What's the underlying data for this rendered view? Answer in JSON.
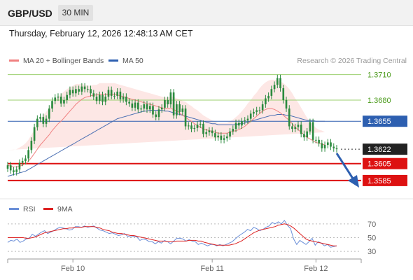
{
  "header": {
    "pair": "GBP/USD",
    "timeframe": "30 MIN",
    "timestamp": "Thursday, February 12, 2026 12:48:13 AM CET"
  },
  "legend": {
    "ma20": "MA 20 + Bollinger Bands",
    "ma50": "MA 50",
    "credit": "Research © 2026 Trading Central"
  },
  "rsi_legend": {
    "rsi": "RSI",
    "ma": "9MA"
  },
  "colors": {
    "candle": "#2b8a3e",
    "ma20": "#f08080",
    "band": "#fde3e1",
    "ma50": "#4a6fb3",
    "level_red": "#dd1111",
    "level_green": "#9bcf6e",
    "level_blue": "#2d5fb0",
    "arrow": "#2d5fb0",
    "rsi": "#6b8fd8",
    "rsi_ma": "#dd2222"
  },
  "chart_data": [
    {
      "type": "candlestick",
      "title": "GBP/USD",
      "timeframe": "30 MIN",
      "ylim": [
        1.3575,
        1.3718
      ],
      "x_ticks": [
        "Feb 10",
        "Feb 11",
        "Feb 12"
      ],
      "price_levels": [
        {
          "label": "1.3710",
          "value": 1.371,
          "kind": "green"
        },
        {
          "label": "1.3680",
          "value": 1.368,
          "kind": "green"
        },
        {
          "label": "1.3655",
          "value": 1.3655,
          "kind": "blue"
        },
        {
          "label": "1.3622",
          "value": 1.3622,
          "kind": "last"
        },
        {
          "label": "1.3605",
          "value": 1.3605,
          "kind": "red"
        },
        {
          "label": "1.3585",
          "value": 1.3585,
          "kind": "red"
        }
      ],
      "bars": 108,
      "close": [
        1.3603,
        1.3597,
        1.3595,
        1.3598,
        1.3606,
        1.3608,
        1.3611,
        1.3621,
        1.3632,
        1.3648,
        1.3658,
        1.366,
        1.3652,
        1.3658,
        1.367,
        1.3679,
        1.3683,
        1.3684,
        1.3676,
        1.368,
        1.3686,
        1.3692,
        1.3688,
        1.3693,
        1.369,
        1.3696,
        1.3693,
        1.3693,
        1.3688,
        1.3684,
        1.3679,
        1.3686,
        1.3678,
        1.3684,
        1.3692,
        1.3685,
        1.3685,
        1.369,
        1.3681,
        1.3684,
        1.3678,
        1.3676,
        1.3671,
        1.3677,
        1.3669,
        1.367,
        1.3675,
        1.3669,
        1.3673,
        1.3663,
        1.366,
        1.3669,
        1.3671,
        1.368,
        1.3675,
        1.3689,
        1.3662,
        1.3675,
        1.3666,
        1.367,
        1.3649,
        1.365,
        1.3646,
        1.3647,
        1.3651,
        1.3652,
        1.364,
        1.3642,
        1.3644,
        1.3641,
        1.3636,
        1.3638,
        1.3633,
        1.3635,
        1.3637,
        1.3643,
        1.3646,
        1.3653,
        1.365,
        1.3655,
        1.3656,
        1.3658,
        1.3664,
        1.3666,
        1.3668,
        1.3668,
        1.3675,
        1.3682,
        1.3685,
        1.3693,
        1.3698,
        1.3706,
        1.3694,
        1.368,
        1.367,
        1.3649,
        1.3646,
        1.3648,
        1.3651,
        1.364,
        1.3636,
        1.3643,
        1.3654,
        1.3633,
        1.3633,
        1.3629,
        1.3623,
        1.3627,
        1.363,
        1.3625,
        1.3623,
        1.3622
      ],
      "ma20": [
        1.3603,
        1.3602,
        1.3601,
        1.3601,
        1.3602,
        1.3603,
        1.3605,
        1.3608,
        1.3612,
        1.3617,
        1.3622,
        1.3627,
        1.3631,
        1.3635,
        1.3639,
        1.3644,
        1.3648,
        1.3652,
        1.3655,
        1.3659,
        1.3663,
        1.3667,
        1.3671,
        1.3675,
        1.3678,
        1.3681,
        1.3683,
        1.3684,
        1.3685,
        1.3686,
        1.3686,
        1.3687,
        1.3687,
        1.3687,
        1.3687,
        1.3687,
        1.3687,
        1.3686,
        1.3685,
        1.3684,
        1.3683,
        1.3682,
        1.3681,
        1.368,
        1.3679,
        1.3678,
        1.3677,
        1.3676,
        1.3675,
        1.3674,
        1.3673,
        1.3672,
        1.3671,
        1.367,
        1.367,
        1.367,
        1.3669,
        1.3667,
        1.3665,
        1.3662,
        1.366,
        1.3657,
        1.3655,
        1.3652,
        1.365,
        1.3648,
        1.3646,
        1.3645,
        1.3644,
        1.3643,
        1.3642,
        1.3641,
        1.3641,
        1.3641,
        1.3641,
        1.3642,
        1.3643,
        1.3644,
        1.3645,
        1.3647,
        1.3649,
        1.3652,
        1.3655,
        1.3658,
        1.3661,
        1.3664,
        1.3667,
        1.3669,
        1.367,
        1.367,
        1.3669,
        1.3667,
        1.3665,
        1.3662,
        1.3659,
        1.3656,
        1.3652,
        1.3648,
        1.3645,
        1.3642,
        1.3639,
        1.3636,
        1.3634,
        1.3632,
        1.363,
        1.3629,
        1.3628,
        1.3627
      ],
      "ma50": [
        1.359,
        1.3591,
        1.3592,
        1.3593,
        1.3594,
        1.3595,
        1.3596,
        1.3598,
        1.36,
        1.3602,
        1.3604,
        1.3606,
        1.3608,
        1.361,
        1.3612,
        1.3614,
        1.3616,
        1.3618,
        1.362,
        1.3622,
        1.3624,
        1.3626,
        1.3628,
        1.363,
        1.3632,
        1.3634,
        1.3636,
        1.3638,
        1.364,
        1.3642,
        1.3644,
        1.3646,
        1.3648,
        1.365,
        1.3652,
        1.3654,
        1.3656,
        1.3658,
        1.3659,
        1.366,
        1.3661,
        1.3662,
        1.3663,
        1.3664,
        1.3665,
        1.3666,
        1.3667,
        1.3667,
        1.3668,
        1.3668,
        1.3668,
        1.3668,
        1.3668,
        1.3667,
        1.3667,
        1.3666,
        1.3665,
        1.3664,
        1.3663,
        1.3662,
        1.3661,
        1.366,
        1.3659,
        1.3658,
        1.3657,
        1.3656,
        1.3655,
        1.3654,
        1.3653,
        1.3652,
        1.3652,
        1.3651,
        1.3651,
        1.3651,
        1.3651,
        1.3651,
        1.3651,
        1.3651,
        1.3652,
        1.3652,
        1.3653,
        1.3654,
        1.3655,
        1.3656,
        1.3657,
        1.3658,
        1.3659,
        1.366,
        1.3661,
        1.3662,
        1.3662,
        1.3663,
        1.3663,
        1.3663,
        1.3662,
        1.3662,
        1.3661,
        1.366,
        1.3659,
        1.3658,
        1.3657,
        1.3656,
        1.3656,
        1.3656,
        1.3655,
        1.3655,
        1.3655,
        1.3655
      ],
      "band_width": [
        0.0018,
        0.0019,
        0.002,
        0.0021,
        0.0022,
        0.0023,
        0.0024,
        0.0025,
        0.0027,
        0.0028,
        0.0029,
        0.003,
        0.0031,
        0.0031,
        0.0032,
        0.0032,
        0.0032,
        0.0032,
        0.0032,
        0.0031,
        0.003,
        0.0028,
        0.0026,
        0.0024,
        0.0021,
        0.0018,
        0.0015,
        0.0013,
        0.0012,
        0.0012,
        0.0012,
        0.0013,
        0.0013,
        0.0013,
        0.0013,
        0.0013,
        0.0013,
        0.0013,
        0.0013,
        0.0013,
        0.0013,
        0.0013,
        0.0013,
        0.0013,
        0.0013,
        0.0013,
        0.0013,
        0.0013,
        0.0013,
        0.0013,
        0.0013,
        0.0013,
        0.0013,
        0.0013,
        0.0013,
        0.0014,
        0.0015,
        0.0015,
        0.0016,
        0.0017,
        0.0018,
        0.0018,
        0.0018,
        0.0018,
        0.0018,
        0.0017,
        0.0016,
        0.0015,
        0.0014,
        0.0013,
        0.0013,
        0.0012,
        0.0012,
        0.0012,
        0.0012,
        0.0013,
        0.0014,
        0.0016,
        0.0018,
        0.002,
        0.0022,
        0.0024,
        0.0025,
        0.0027,
        0.0028,
        0.003,
        0.0031,
        0.0032,
        0.0033,
        0.0034,
        0.0035,
        0.0036,
        0.0037,
        0.0038,
        0.0038,
        0.0037,
        0.0036,
        0.0034,
        0.0032,
        0.0029,
        0.0026,
        0.0023,
        0.0021,
        0.0019,
        0.0017,
        0.0016,
        0.0016,
        0.0015
      ]
    },
    {
      "type": "line",
      "title": "RSI",
      "ylim": [
        25,
        80
      ],
      "y_ticks": [
        70,
        50,
        30
      ],
      "series": [
        {
          "name": "RSI",
          "values": [
            43,
            46,
            45,
            48,
            43,
            45,
            48,
            49,
            55,
            52,
            55,
            58,
            60,
            56,
            58,
            60,
            63,
            65,
            64,
            63,
            61,
            62,
            66,
            66,
            65,
            67,
            65,
            66,
            67,
            64,
            61,
            60,
            58,
            56,
            57,
            55,
            53,
            54,
            56,
            52,
            51,
            52,
            51,
            46,
            48,
            47,
            44,
            44,
            41,
            44,
            42,
            46,
            44,
            41,
            45,
            49,
            49,
            48,
            45,
            47,
            45,
            44,
            40,
            42,
            40,
            38,
            40,
            40,
            38,
            40,
            38,
            40,
            42,
            44,
            48,
            52,
            55,
            58,
            62,
            60,
            65,
            63,
            60,
            62,
            65,
            67,
            72,
            70,
            73,
            70,
            75,
            68,
            63,
            48,
            40,
            46,
            43,
            40,
            44,
            49,
            39,
            44,
            42,
            38,
            40,
            36,
            37,
            38
          ]
        },
        {
          "name": "9MA",
          "values": [
            50,
            50,
            50,
            50,
            50,
            50,
            49,
            49,
            50,
            51,
            53,
            55,
            57,
            58,
            59,
            60,
            61,
            62,
            63,
            63,
            64,
            64,
            65,
            65,
            65,
            66,
            66,
            66,
            66,
            65,
            64,
            62,
            61,
            60,
            58,
            57,
            56,
            56,
            55,
            54,
            53,
            53,
            52,
            51,
            50,
            49,
            48,
            47,
            46,
            45,
            45,
            45,
            44,
            44,
            44,
            45,
            45,
            45,
            45,
            46,
            46,
            46,
            45,
            45,
            43,
            42,
            41,
            40,
            39,
            39,
            39,
            39,
            39,
            40,
            41,
            43,
            45,
            48,
            51,
            54,
            57,
            59,
            61,
            62,
            63,
            64,
            65,
            66,
            68,
            69,
            70,
            69,
            67,
            64,
            60,
            56,
            52,
            48,
            46,
            45,
            44,
            43,
            42,
            41,
            40,
            39,
            38,
            38
          ]
        }
      ]
    }
  ]
}
